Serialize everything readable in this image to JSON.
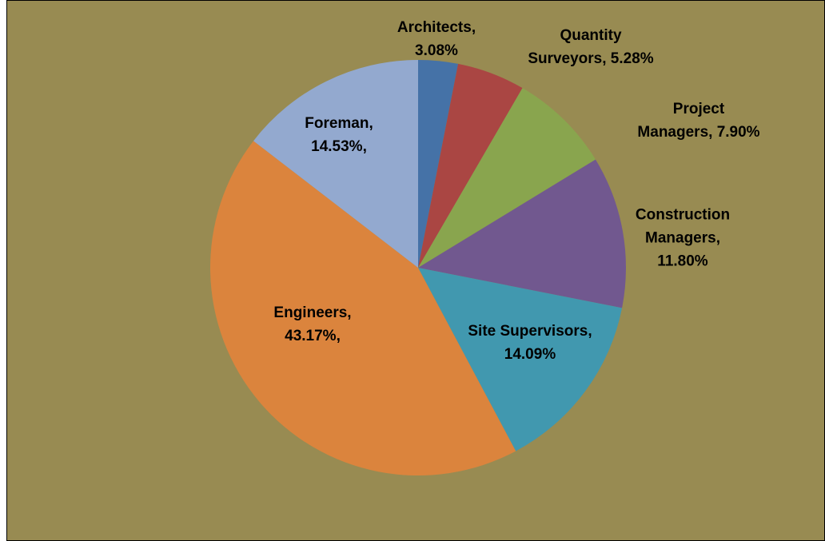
{
  "chart_data": {
    "type": "pie",
    "categories": [
      "Architects",
      "Quantity Surveyors",
      "Project Managers",
      "Construction Managers",
      "Site Supervisors",
      "Engineers",
      "Foreman"
    ],
    "values": [
      3.08,
      5.28,
      7.9,
      11.8,
      14.09,
      43.17,
      14.53
    ],
    "value_labels": [
      "Architects,\n3.08%",
      "Quantity\nSurveyors, 5.28%",
      "Project\nManagers, 7.90%",
      "Construction\nManagers,\n11.80%",
      "Site Supervisors,\n14.09%",
      "Engineers,\n43.17%,",
      "Foreman,\n14.53%,"
    ],
    "colors": [
      "#4572a7",
      "#aa4643",
      "#89a54e",
      "#71588f",
      "#4198af",
      "#db843d",
      "#93a9cf"
    ]
  }
}
